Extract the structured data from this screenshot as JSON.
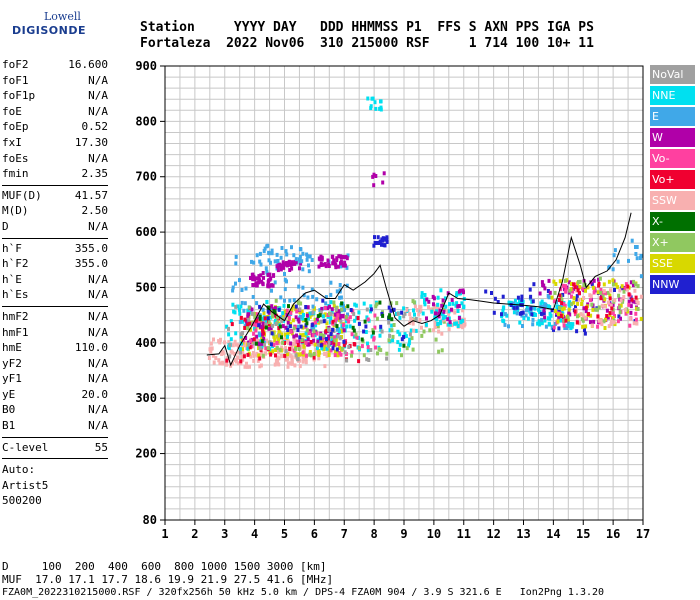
{
  "logo": {
    "line1": "Lowell",
    "line2": "DIGISONDE"
  },
  "header": {
    "row1": "Station     YYYY DAY   DDD HHMMSS P1  FFS S AXN PPS IGA PS",
    "row2": "Fortaleza  2022 Nov06  310 215000 RSF     1 714 100 10+ 11"
  },
  "params": [
    [
      {
        "name": "foF2",
        "value": "16.600"
      },
      {
        "name": "foF1",
        "value": "N/A"
      },
      {
        "name": "foF1p",
        "value": "N/A"
      },
      {
        "name": "foE",
        "value": "N/A"
      },
      {
        "name": "foEp",
        "value": "0.52"
      },
      {
        "name": "fxI",
        "value": "17.30"
      },
      {
        "name": "foEs",
        "value": "N/A"
      },
      {
        "name": "fmin",
        "value": "2.35"
      }
    ],
    [
      {
        "name": "MUF(D)",
        "value": "41.57"
      },
      {
        "name": "M(D)",
        "value": "2.50"
      },
      {
        "name": "D",
        "value": "N/A"
      }
    ],
    [
      {
        "name": "h`F",
        "value": "355.0"
      },
      {
        "name": "h`F2",
        "value": "355.0"
      },
      {
        "name": "h`E",
        "value": "N/A"
      },
      {
        "name": "h`Es",
        "value": "N/A"
      }
    ],
    [
      {
        "name": "hmF2",
        "value": "N/A"
      },
      {
        "name": "hmF1",
        "value": "N/A"
      },
      {
        "name": "hmE",
        "value": "110.0"
      },
      {
        "name": "yF2",
        "value": "N/A"
      },
      {
        "name": "yF1",
        "value": "N/A"
      },
      {
        "name": "yE",
        "value": "20.0"
      },
      {
        "name": "B0",
        "value": "N/A"
      },
      {
        "name": "B1",
        "value": "N/A"
      }
    ],
    [
      {
        "name": "C-level",
        "value": "55"
      }
    ]
  ],
  "auto": {
    "line1": "Auto:",
    "line2": "Artist5",
    "line3": "500200"
  },
  "legend": [
    {
      "label": "NoVal",
      "color": "#a0a0a0"
    },
    {
      "label": "NNE",
      "color": "#00e0f0"
    },
    {
      "label": "E",
      "color": "#40a8e8"
    },
    {
      "label": "W",
      "color": "#b000a8"
    },
    {
      "label": "Vo-",
      "color": "#ff40a0"
    },
    {
      "label": "Vo+",
      "color": "#f00030"
    },
    {
      "label": "SSW",
      "color": "#f8b0b0"
    },
    {
      "label": "X-",
      "color": "#007000"
    },
    {
      "label": "X+",
      "color": "#90c860"
    },
    {
      "label": "SSE",
      "color": "#d8d800"
    },
    {
      "label": "NNW",
      "color": "#2020d0"
    }
  ],
  "footer": {
    "line1": "D     100  200  400  600  800 1000 1500 3000 [km]",
    "line2": "MUF  17.0 17.1 17.7 18.6 19.9 21.9 27.5 41.6 [MHz]",
    "line3": "FZA0M_2022310215000.RSF / 320fx256h 50 kHz 5.0 km / DPS-4 FZA0M 904 / 3.9 S 321.6 E   Ion2Png 1.3.20"
  },
  "chart_data": {
    "type": "scatter",
    "xlabel": "",
    "ylabel": "",
    "xlim": [
      1,
      17
    ],
    "ylim": [
      80,
      900
    ],
    "xticks": [
      "1",
      "2",
      "3",
      "4",
      "5",
      "6",
      "7",
      "8",
      "9",
      "10",
      "11",
      "12",
      "13",
      "14",
      "15",
      "16",
      "17"
    ],
    "yticks": [
      "80",
      "200",
      "300",
      "400",
      "500",
      "600",
      "700",
      "800",
      "900"
    ],
    "grid": true,
    "trace": {
      "x": [
        2.4,
        2.8,
        3.0,
        3.2,
        3.5,
        3.9,
        4.3,
        4.6,
        5.0,
        5.3,
        5.7,
        6.0,
        6.4,
        6.7,
        7.0,
        7.3,
        7.7,
        8.0,
        8.2,
        8.4,
        8.7,
        9.0,
        9.3,
        9.6,
        9.9,
        10.2,
        10.5,
        10.8,
        11.2,
        11.6,
        12.0,
        12.5,
        13.0,
        13.5,
        14.0,
        14.3,
        14.6,
        14.9,
        15.1,
        15.4,
        15.8,
        16.1,
        16.4,
        16.6
      ],
      "y": [
        378,
        380,
        395,
        360,
        395,
        430,
        470,
        455,
        440,
        470,
        490,
        495,
        480,
        480,
        505,
        495,
        510,
        525,
        540,
        500,
        445,
        430,
        440,
        435,
        440,
        450,
        490,
        480,
        478,
        475,
        472,
        470,
        468,
        465,
        460,
        510,
        590,
        540,
        500,
        520,
        530,
        550,
        590,
        635
      ]
    },
    "clusters": [
      {
        "dir": "SSW",
        "xmin": 2.4,
        "xmax": 6.4,
        "ymin": 360,
        "ymax": 410,
        "n": 180
      },
      {
        "dir": "SSE",
        "xmin": 3.5,
        "xmax": 7.0,
        "ymin": 380,
        "ymax": 470,
        "n": 150
      },
      {
        "dir": "NNE",
        "xmin": 3.0,
        "xmax": 9.5,
        "ymin": 390,
        "ymax": 480,
        "n": 150
      },
      {
        "dir": "E",
        "xmin": 3.2,
        "xmax": 7.2,
        "ymin": 420,
        "ymax": 570,
        "n": 90
      },
      {
        "dir": "W",
        "xmin": 3.6,
        "xmax": 7.0,
        "ymin": 400,
        "ymax": 470,
        "n": 90
      },
      {
        "dir": "Vo-",
        "xmin": 3.5,
        "xmax": 8.0,
        "ymin": 380,
        "ymax": 470,
        "n": 70
      },
      {
        "dir": "Vo+",
        "xmin": 3.0,
        "xmax": 7.5,
        "ymin": 370,
        "ymax": 460,
        "n": 50
      },
      {
        "dir": "X+",
        "xmin": 3.5,
        "xmax": 10.5,
        "ymin": 380,
        "ymax": 480,
        "n": 80
      },
      {
        "dir": "NoVal",
        "xmin": 3.0,
        "xmax": 9.5,
        "ymin": 370,
        "ymax": 470,
        "n": 60
      },
      {
        "dir": "NNW",
        "xmin": 4.0,
        "xmax": 9.0,
        "ymin": 390,
        "ymax": 480,
        "n": 40
      },
      {
        "dir": "X-",
        "xmin": 4.0,
        "xmax": 9.0,
        "ymin": 390,
        "ymax": 480,
        "n": 30
      },
      {
        "dir": "W",
        "xmin": 3.8,
        "xmax": 4.6,
        "ymin": 505,
        "ymax": 530,
        "n": 40
      },
      {
        "dir": "W",
        "xmin": 4.7,
        "xmax": 5.5,
        "ymin": 535,
        "ymax": 550,
        "n": 35
      },
      {
        "dir": "W",
        "xmin": 6.1,
        "xmax": 7.1,
        "ymin": 540,
        "ymax": 560,
        "n": 40
      },
      {
        "dir": "E",
        "xmin": 4.0,
        "xmax": 5.9,
        "ymin": 550,
        "ymax": 580,
        "n": 30
      },
      {
        "dir": "NNW",
        "xmin": 7.9,
        "xmax": 8.4,
        "ymin": 578,
        "ymax": 595,
        "n": 20
      },
      {
        "dir": "NNE",
        "xmin": 7.7,
        "xmax": 8.2,
        "ymin": 825,
        "ymax": 850,
        "n": 12
      },
      {
        "dir": "W",
        "xmin": 7.9,
        "xmax": 8.3,
        "ymin": 685,
        "ymax": 710,
        "n": 6
      },
      {
        "dir": "SSW",
        "xmin": 9.0,
        "xmax": 11.0,
        "ymin": 420,
        "ymax": 470,
        "n": 60
      },
      {
        "dir": "NNE",
        "xmin": 9.5,
        "xmax": 11.0,
        "ymin": 430,
        "ymax": 500,
        "n": 50
      },
      {
        "dir": "W",
        "xmin": 9.6,
        "xmax": 11.0,
        "ymin": 440,
        "ymax": 500,
        "n": 25
      },
      {
        "dir": "NNE",
        "xmin": 12.2,
        "xmax": 14.6,
        "ymin": 430,
        "ymax": 480,
        "n": 80
      },
      {
        "dir": "E",
        "xmin": 12.3,
        "xmax": 14.5,
        "ymin": 430,
        "ymax": 490,
        "n": 40
      },
      {
        "dir": "NNW",
        "xmin": 12.5,
        "xmax": 16.8,
        "ymin": 420,
        "ymax": 510,
        "n": 40
      },
      {
        "dir": "W",
        "xmin": 13.5,
        "xmax": 16.8,
        "ymin": 440,
        "ymax": 520,
        "n": 60
      },
      {
        "dir": "Vo-",
        "xmin": 13.8,
        "xmax": 16.8,
        "ymin": 430,
        "ymax": 510,
        "n": 50
      },
      {
        "dir": "SSE",
        "xmin": 13.8,
        "xmax": 16.9,
        "ymin": 430,
        "ymax": 520,
        "n": 60
      },
      {
        "dir": "X+",
        "xmin": 14.0,
        "xmax": 16.9,
        "ymin": 440,
        "ymax": 520,
        "n": 40
      },
      {
        "dir": "SSW",
        "xmin": 14.5,
        "xmax": 16.9,
        "ymin": 430,
        "ymax": 500,
        "n": 40
      },
      {
        "dir": "E",
        "xmin": 15.8,
        "xmax": 16.9,
        "ymin": 520,
        "ymax": 590,
        "n": 15
      },
      {
        "dir": "Vo+",
        "xmin": 14.0,
        "xmax": 16.8,
        "ymin": 440,
        "ymax": 510,
        "n": 25
      },
      {
        "dir": "NNW",
        "xmin": 11.5,
        "xmax": 13.0,
        "ymin": 450,
        "ymax": 500,
        "n": 12
      }
    ]
  }
}
